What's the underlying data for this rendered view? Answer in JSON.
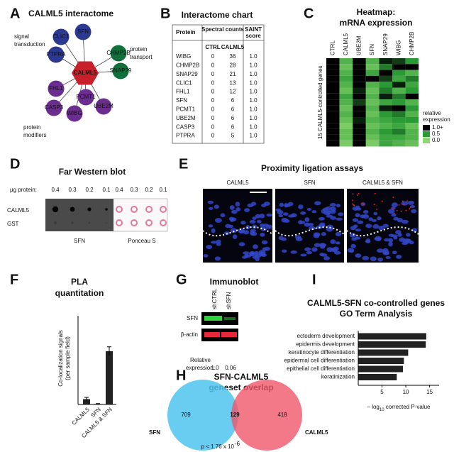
{
  "panel_labels": [
    "A",
    "B",
    "C",
    "D",
    "E",
    "F",
    "G",
    "H",
    "I"
  ],
  "interactome": {
    "title": "CALML5 interactome",
    "center": "CALML5",
    "center_color": "#c8202a",
    "groups": [
      {
        "label": [
          "signal",
          "transduction"
        ],
        "color": "#2b3990"
      },
      {
        "label": [
          "protein",
          "transport"
        ],
        "color": "#10703a"
      },
      {
        "label": [
          "protein",
          "modifiers"
        ],
        "color": "#6b2d8f"
      }
    ],
    "nodes": [
      {
        "label": "CLIC1",
        "color": "#2b3990"
      },
      {
        "label": "SFN",
        "color": "#2b3990"
      },
      {
        "label": "PTPRA",
        "color": "#2b3990"
      },
      {
        "label": "CHMP2B",
        "color": "#10703a"
      },
      {
        "label": "SNAP29",
        "color": "#10703a"
      },
      {
        "label": "FHL1",
        "color": "#6b2d8f"
      },
      {
        "label": "PCMT1",
        "color": "#6b2d8f"
      },
      {
        "label": "CASP3",
        "color": "#6b2d8f"
      },
      {
        "label": "UBE2M",
        "color": "#6b2d8f"
      },
      {
        "label": "WIBG",
        "color": "#6b2d8f"
      }
    ]
  },
  "table": {
    "title": "Interactome chart",
    "header": [
      "Protein",
      "Spectral counts",
      [
        "SAINT",
        "score"
      ]
    ],
    "subheader": [
      "CTRL",
      "CALML5"
    ],
    "rows": [
      [
        "WIBG",
        "0",
        "36",
        "1.0"
      ],
      [
        "CHMP2B",
        "0",
        "28",
        "1.0"
      ],
      [
        "SNAP29",
        "0",
        "21",
        "1.0"
      ],
      [
        "CLIC1",
        "0",
        "13",
        "1.0"
      ],
      [
        "FHL1",
        "0",
        "12",
        "1.0"
      ],
      [
        "SFN",
        "0",
        "6",
        "1.0"
      ],
      [
        "PCMT1",
        "0",
        "6",
        "1.0"
      ],
      [
        "UBE2M",
        "0",
        "6",
        "1.0"
      ],
      [
        "CASP3",
        "0",
        "6",
        "1.0"
      ],
      [
        "PTPRA",
        "0",
        "5",
        "1.0"
      ]
    ]
  },
  "far_western": {
    "title": "Far Western blot",
    "amount_label": "µg protein:",
    "amounts": [
      "0.4",
      "0.3",
      "0.2",
      "0.1"
    ],
    "rows": [
      "CALML5",
      "GST"
    ],
    "blots": [
      "SFN",
      "Ponceau S"
    ]
  },
  "pla": {
    "title": "Proximity ligation assays",
    "images": [
      "CALML5",
      "SFN",
      "CALML5 & SFN"
    ]
  },
  "immunoblot": {
    "title": "Immunoblot",
    "lanes": [
      "shCTRL",
      "shSFN"
    ],
    "rows": [
      "SFN",
      "β-actin"
    ],
    "relative_label": [
      "Relative",
      "expression:"
    ],
    "relative": [
      "1.0",
      "0.06"
    ]
  },
  "venn": {
    "title": [
      "SFN-CALML5",
      "geneset overlap"
    ],
    "sets": [
      {
        "name": "SFN",
        "color": "#4fc3ee"
      },
      {
        "name": "CALML5",
        "color": "#f0566a"
      }
    ],
    "counts": [
      "709",
      "129",
      "418"
    ],
    "p_value": "p < 1.76 x 10",
    "p_exponent": "-6"
  },
  "chart_data": [
    {
      "type": "heatmap",
      "title": [
        "Heatmap:",
        "mRNA expression"
      ],
      "columns": [
        "CTRL",
        "CALML5",
        "UBE2M",
        "SFN",
        "SNAP29",
        "WIBG",
        "CHMP2B"
      ],
      "ylabel": "15 CALML5-controlled genes",
      "values": [
        [
          1,
          0.3,
          1,
          0.3,
          0.9,
          0.8,
          0.5
        ],
        [
          1,
          0.2,
          1,
          0.2,
          0.6,
          1,
          1
        ],
        [
          1,
          0.3,
          1,
          0.4,
          1,
          0.5,
          0.3
        ],
        [
          1,
          0.4,
          1,
          1,
          0.8,
          0.4,
          0.6
        ],
        [
          1,
          0.3,
          1,
          0.3,
          0.5,
          0.9,
          0.4
        ],
        [
          1,
          0.2,
          0.9,
          0.2,
          0.6,
          0.3,
          0.5
        ],
        [
          1,
          0.4,
          1,
          0.3,
          0.9,
          0.6,
          1
        ],
        [
          1,
          0.3,
          0.8,
          0.2,
          0.4,
          0.5,
          0.3
        ],
        [
          1,
          0.2,
          1,
          0.3,
          0.9,
          1,
          0.5
        ],
        [
          1,
          0.3,
          1,
          0.2,
          0.5,
          0.6,
          0.3
        ],
        [
          1,
          0.2,
          0.9,
          0.3,
          0.4,
          0.5,
          0.5
        ],
        [
          1,
          0.1,
          1,
          0.2,
          0.3,
          0.4,
          0.2
        ],
        [
          1,
          0.2,
          1,
          0.3,
          0.5,
          0.6,
          0.3
        ],
        [
          1,
          0.2,
          1,
          0.2,
          0.4,
          0.4,
          0.3
        ],
        [
          1,
          0.1,
          1,
          0.1,
          0.4,
          0.3,
          0.2
        ]
      ],
      "colorbar_label": [
        "relative",
        "expression"
      ],
      "colorbar_ticks": [
        {
          "value": 1,
          "label": "1.0+"
        },
        0.5,
        {
          "value": 0,
          "label": "0.0"
        }
      ],
      "colors": [
        "#8fd870",
        "#2a9a35",
        "#000000"
      ]
    },
    {
      "type": "bar",
      "title": [
        "PLA",
        "quantitation"
      ],
      "ylabel": [
        "Co-localization signals",
        "(per sample field)"
      ],
      "categories": [
        "CALML5",
        "SFN",
        "CALML5 & SFN"
      ],
      "values": [
        3,
        0.3,
        30
      ],
      "errors": [
        1,
        0.2,
        2.5
      ],
      "ylim": [
        0,
        50
      ],
      "color": "#222222"
    },
    {
      "type": "barh",
      "title": [
        "CALML5-SFN co-controlled genes",
        "GO Term Analysis"
      ],
      "categories": [
        "ectoderm development",
        "epidermis development",
        "keratinocyte differentiation",
        "epidermal cell differentiation",
        "epithelial cell differentiation",
        "keratinization"
      ],
      "values": [
        14.3,
        14.2,
        10.5,
        9.6,
        9.4,
        8.1
      ],
      "xlim": [
        0,
        17
      ],
      "xticks": [
        5,
        10,
        15
      ],
      "xlabel": [
        "– log",
        "10",
        " corrected P-value"
      ],
      "color": "#222222"
    }
  ]
}
